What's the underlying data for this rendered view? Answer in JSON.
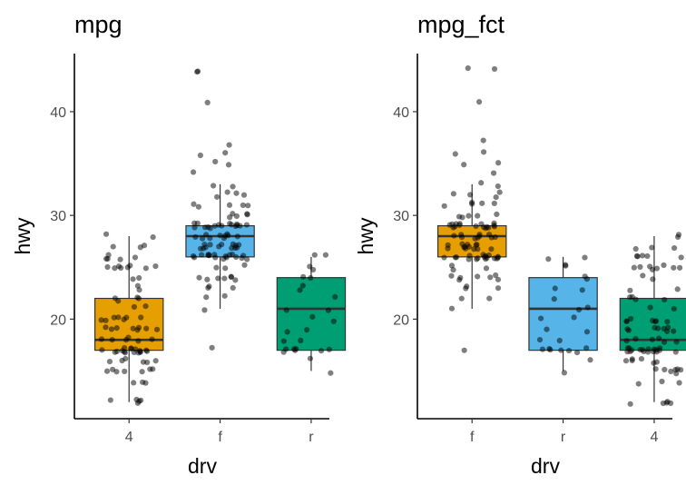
{
  "chart_data": [
    {
      "type": "box",
      "title": "mpg",
      "xlabel": "drv",
      "ylabel": "hwy",
      "ylim": [
        10.4,
        45.6
      ],
      "yticks": [
        20,
        30,
        40
      ],
      "grid": false,
      "categories": [
        "4",
        "f",
        "r"
      ],
      "box_colors": [
        "#E69F00",
        "#56B4E9",
        "#009E73"
      ],
      "boxes": [
        {
          "category": "4",
          "min": 12,
          "q1": 17,
          "median": 18,
          "q3": 22,
          "max": 28,
          "outliers": []
        },
        {
          "category": "f",
          "min": 21,
          "q1": 26,
          "median": 28,
          "q3": 29,
          "max": 33,
          "outliers": [
            17,
            35,
            35,
            36,
            36,
            37,
            41,
            44,
            44
          ]
        },
        {
          "category": "r",
          "min": 15,
          "q1": 17,
          "median": 21,
          "q3": 24,
          "max": 26,
          "outliers": []
        }
      ],
      "points": [
        {
          "category": "4",
          "values": [
            12,
            12,
            12,
            12,
            12,
            14,
            14,
            14,
            15,
            15,
            15,
            15,
            15,
            15,
            15,
            16,
            16,
            16,
            16,
            16,
            16,
            17,
            17,
            17,
            17,
            17,
            17,
            17,
            17,
            17,
            17,
            17,
            17,
            17,
            17,
            17,
            17,
            17,
            18,
            18,
            18,
            18,
            18,
            18,
            19,
            19,
            19,
            19,
            19,
            19,
            19,
            19,
            20,
            20,
            20,
            20,
            20,
            20,
            20,
            21,
            21,
            22,
            22,
            22,
            22,
            23,
            23,
            24,
            24,
            25,
            25,
            25,
            25,
            25,
            25,
            25,
            25,
            26,
            26,
            26,
            26,
            26,
            27,
            27,
            27,
            28,
            28
          ]
        },
        {
          "category": "f",
          "values": [
            17,
            21,
            22,
            22,
            23,
            23,
            23,
            24,
            24,
            24,
            24,
            24,
            24,
            24,
            25,
            25,
            25,
            26,
            26,
            26,
            26,
            26,
            26,
            26,
            26,
            26,
            26,
            26,
            26,
            26,
            26,
            26,
            26,
            26,
            27,
            27,
            27,
            27,
            27,
            27,
            27,
            27,
            27,
            27,
            27,
            27,
            27,
            28,
            28,
            28,
            28,
            28,
            28,
            28,
            28,
            28,
            28,
            29,
            29,
            29,
            29,
            29,
            29,
            29,
            29,
            29,
            29,
            29,
            29,
            29,
            29,
            29,
            29,
            30,
            30,
            30,
            30,
            30,
            31,
            31,
            31,
            31,
            31,
            32,
            32,
            32,
            32,
            33,
            33,
            34,
            35,
            35,
            36,
            36,
            37,
            41,
            44,
            44
          ]
        },
        {
          "category": "r",
          "values": [
            15,
            16,
            17,
            17,
            17,
            17,
            17,
            17,
            17,
            18,
            18,
            19,
            19,
            20,
            20,
            21,
            21,
            22,
            23,
            23,
            24,
            24,
            25,
            25,
            26,
            26
          ]
        }
      ]
    },
    {
      "type": "box",
      "title": "mpg_fct",
      "xlabel": "drv",
      "ylabel": "hwy",
      "ylim": [
        10.4,
        45.6
      ],
      "yticks": [
        20,
        30,
        40
      ],
      "grid": false,
      "categories": [
        "f",
        "r",
        "4"
      ],
      "box_colors": [
        "#E69F00",
        "#56B4E9",
        "#009E73"
      ],
      "boxes": [
        {
          "category": "f",
          "min": 21,
          "q1": 26,
          "median": 28,
          "q3": 29,
          "max": 33,
          "outliers": [
            17,
            35,
            35,
            36,
            36,
            37,
            41,
            44,
            44
          ]
        },
        {
          "category": "r",
          "min": 15,
          "q1": 17,
          "median": 21,
          "q3": 24,
          "max": 26,
          "outliers": []
        },
        {
          "category": "4",
          "min": 12,
          "q1": 17,
          "median": 18,
          "q3": 22,
          "max": 28,
          "outliers": []
        }
      ],
      "points": [
        {
          "category": "f",
          "values": [
            17,
            21,
            22,
            22,
            23,
            23,
            23,
            24,
            24,
            24,
            24,
            24,
            24,
            24,
            25,
            25,
            25,
            26,
            26,
            26,
            26,
            26,
            26,
            26,
            26,
            26,
            26,
            26,
            26,
            26,
            26,
            26,
            26,
            26,
            27,
            27,
            27,
            27,
            27,
            27,
            27,
            27,
            27,
            27,
            27,
            27,
            27,
            28,
            28,
            28,
            28,
            28,
            28,
            28,
            28,
            28,
            28,
            29,
            29,
            29,
            29,
            29,
            29,
            29,
            29,
            29,
            29,
            29,
            29,
            29,
            29,
            29,
            29,
            30,
            30,
            30,
            30,
            30,
            31,
            31,
            31,
            31,
            31,
            32,
            32,
            32,
            32,
            33,
            33,
            34,
            35,
            35,
            36,
            36,
            37,
            41,
            44,
            44
          ]
        },
        {
          "category": "r",
          "values": [
            15,
            16,
            17,
            17,
            17,
            17,
            17,
            17,
            17,
            18,
            18,
            19,
            19,
            20,
            20,
            21,
            21,
            22,
            23,
            23,
            24,
            24,
            25,
            25,
            26,
            26
          ]
        },
        {
          "category": "4",
          "values": [
            12,
            12,
            12,
            12,
            12,
            14,
            14,
            14,
            15,
            15,
            15,
            15,
            15,
            15,
            15,
            16,
            16,
            16,
            16,
            16,
            16,
            17,
            17,
            17,
            17,
            17,
            17,
            17,
            17,
            17,
            17,
            17,
            17,
            17,
            17,
            17,
            17,
            17,
            18,
            18,
            18,
            18,
            18,
            18,
            19,
            19,
            19,
            19,
            19,
            19,
            19,
            19,
            20,
            20,
            20,
            20,
            20,
            20,
            20,
            21,
            21,
            22,
            22,
            22,
            22,
            23,
            23,
            24,
            24,
            25,
            25,
            25,
            25,
            25,
            25,
            25,
            25,
            26,
            26,
            26,
            26,
            26,
            27,
            27,
            27,
            28,
            28
          ]
        }
      ]
    }
  ]
}
